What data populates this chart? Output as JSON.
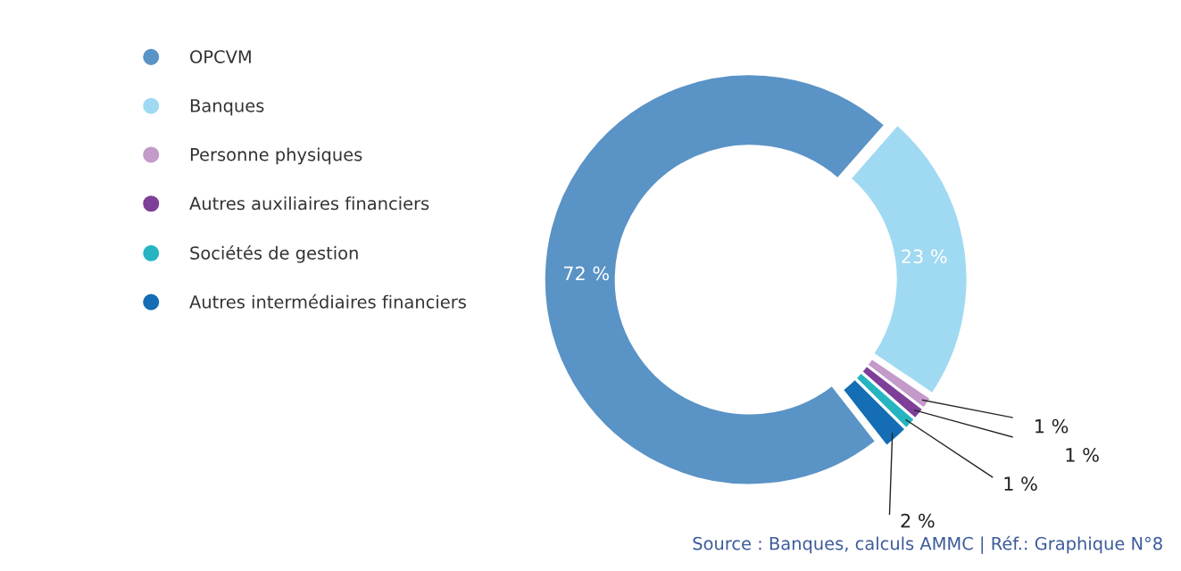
{
  "chart_data": {
    "type": "donut",
    "categories": [
      "OPCVM",
      "Banques",
      "Personne physiques",
      "Autres auxiliaires financiers",
      "Sociétés de gestion",
      "Autres intermédiaires financiers"
    ],
    "values": [
      72,
      23,
      1,
      1,
      1,
      2
    ],
    "colors": [
      "#5a93c6",
      "#a0d9f2",
      "#c39ac9",
      "#7d3f98",
      "#26b5c0",
      "#146db5"
    ],
    "value_labels": [
      "72 %",
      "23 %",
      "1 %",
      "1 %",
      "1 %",
      "2 %"
    ],
    "legend": "left",
    "annotations": [
      "Source : Banques, calculs AMMC | Réf.: Graphique N°8"
    ]
  }
}
